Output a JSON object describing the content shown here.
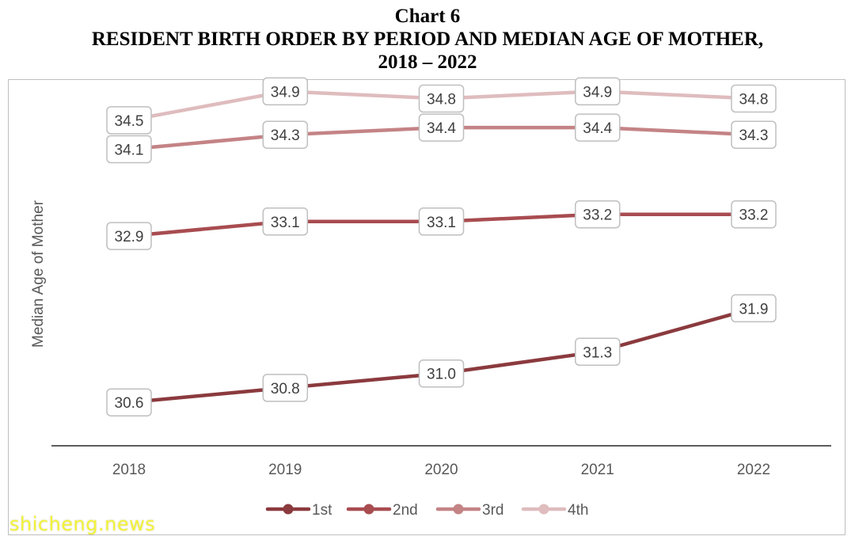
{
  "title": {
    "line1": "Chart 6",
    "line2": "RESIDENT BIRTH ORDER BY PERIOD AND MEDIAN AGE OF MOTHER,",
    "line3": "2018 – 2022"
  },
  "watermark": "shicheng.news",
  "chart_data": {
    "type": "line",
    "title": "Chart 6 RESIDENT BIRTH ORDER BY PERIOD AND MEDIAN AGE OF MOTHER, 2018 – 2022",
    "xlabel": "",
    "ylabel": "Median Age of Mother",
    "categories": [
      "2018",
      "2019",
      "2020",
      "2021",
      "2022"
    ],
    "ylim": [
      30.0,
      35.2
    ],
    "grid": false,
    "legend_position": "bottom",
    "series": [
      {
        "name": "1st",
        "color": "#8b3a3e",
        "values": [
          30.6,
          30.8,
          31.0,
          31.3,
          31.9
        ],
        "labels": [
          "30.6",
          "30.8",
          "31.0",
          "31.3",
          "31.9"
        ]
      },
      {
        "name": "2nd",
        "color": "#a84c50",
        "values": [
          32.9,
          33.1,
          33.1,
          33.2,
          33.2
        ],
        "labels": [
          "32.9",
          "33.1",
          "33.1",
          "33.2",
          "33.2"
        ]
      },
      {
        "name": "3rd",
        "color": "#c48385",
        "values": [
          34.1,
          34.3,
          34.4,
          34.4,
          34.3
        ],
        "labels": [
          "34.1",
          "34.3",
          "34.4",
          "34.4",
          "34.3"
        ]
      },
      {
        "name": "4th",
        "color": "#dfbcbe",
        "values": [
          34.5,
          34.9,
          34.8,
          34.9,
          34.8
        ],
        "labels": [
          "34.5",
          "34.9",
          "34.8",
          "34.9",
          "34.8"
        ]
      }
    ]
  }
}
